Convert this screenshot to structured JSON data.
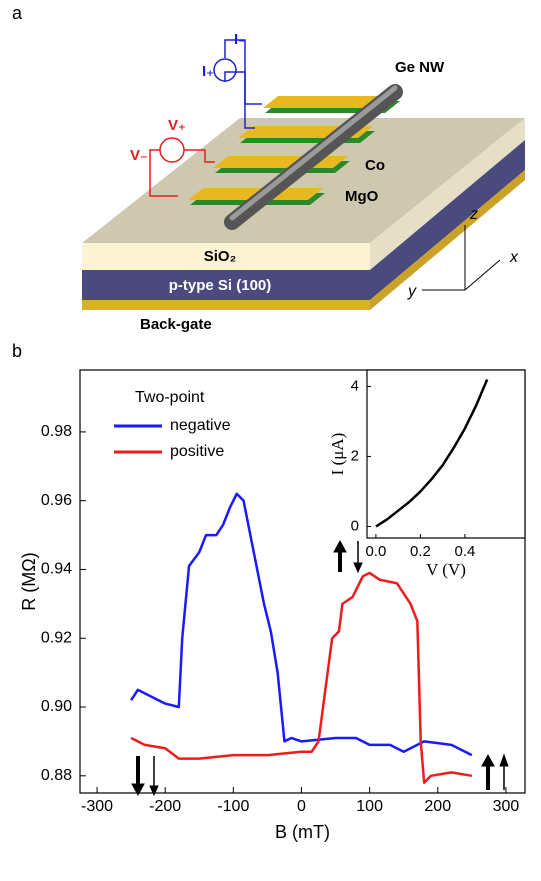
{
  "figure": {
    "panel_a": {
      "letter": "a",
      "nanowire": "Ge NW",
      "current_minus": "I₋",
      "current_plus": "I₊",
      "voltage_plus": "V₊",
      "voltage_minus": "V₋",
      "contact": "Co",
      "barrier": "MgO",
      "oxide": "SiO₂",
      "substrate": "p-type Si (100)",
      "gate": "Back-gate",
      "axis_z": "z",
      "axis_x": "x",
      "axis_y": "y"
    },
    "panel_b": {
      "letter": "b"
    }
  },
  "chart_data": [
    {
      "type": "line",
      "xlabel": "B (mT)",
      "ylabel": "R (MΩ)",
      "legend_title": "Two-point",
      "xlim": [
        -325,
        328
      ],
      "xticks": [
        -300,
        -200,
        -100,
        0,
        100,
        200,
        300
      ],
      "ylim": [
        0.875,
        0.998
      ],
      "yticks": [
        0.88,
        {
          "value": 0.9,
          "label": "0.90"
        },
        0.92,
        0.94,
        0.96,
        0.98
      ],
      "series": [
        {
          "name": "negative",
          "color": "#1a1aff",
          "x": [
            -250,
            -240,
            -220,
            -200,
            -180,
            -175,
            -165,
            -150,
            -140,
            -125,
            -115,
            -105,
            -95,
            -85,
            -75,
            -65,
            -55,
            -45,
            -35,
            -25,
            -15,
            0,
            50,
            80,
            100,
            130,
            150,
            180,
            220,
            250
          ],
          "values": [
            0.902,
            0.905,
            0.903,
            0.901,
            0.9,
            0.92,
            0.941,
            0.945,
            0.95,
            0.95,
            0.953,
            0.958,
            0.962,
            0.96,
            0.95,
            0.94,
            0.93,
            0.922,
            0.91,
            0.89,
            0.891,
            0.89,
            0.891,
            0.891,
            0.889,
            0.889,
            0.887,
            0.89,
            0.889,
            0.886
          ]
        },
        {
          "name": "positive",
          "color": "#ee1c1c",
          "x": [
            -250,
            -230,
            -200,
            -180,
            -150,
            -100,
            -50,
            0,
            15,
            25,
            35,
            45,
            55,
            60,
            75,
            90,
            100,
            115,
            140,
            160,
            170,
            175,
            180,
            190,
            220,
            250
          ],
          "values": [
            0.891,
            0.889,
            0.888,
            0.885,
            0.885,
            0.886,
            0.886,
            0.887,
            0.887,
            0.89,
            0.905,
            0.92,
            0.922,
            0.93,
            0.932,
            0.938,
            0.939,
            0.937,
            0.936,
            0.93,
            0.925,
            0.89,
            0.878,
            0.88,
            0.881,
            0.88
          ]
        }
      ]
    },
    {
      "type": "line",
      "xlabel": "V (V)",
      "ylabel": "I (μA)",
      "xlim": [
        -0.04,
        0.67
      ],
      "xticks": [
        {
          "value": 0,
          "label": "0.0"
        },
        0.2,
        0.4
      ],
      "ylim": [
        -0.33,
        4.47
      ],
      "yticks": [
        0,
        2,
        4
      ],
      "series": [
        {
          "color": "#000000",
          "x": [
            0,
            0.05,
            0.1,
            0.15,
            0.2,
            0.25,
            0.3,
            0.35,
            0.4,
            0.45,
            0.5
          ],
          "values": [
            0,
            0.2,
            0.45,
            0.7,
            1.0,
            1.35,
            1.75,
            2.25,
            2.8,
            3.45,
            4.2
          ]
        }
      ]
    }
  ]
}
